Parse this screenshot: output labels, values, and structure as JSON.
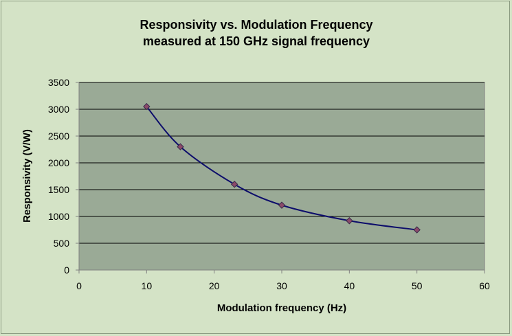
{
  "chart_data": {
    "type": "scatter",
    "title": "Responsivity vs. Modulation Frequency",
    "subtitle": "measured at 150 GHz signal frequency",
    "xlabel": "Modulation frequency (Hz)",
    "ylabel": "Responsivity (V/W)",
    "xlim": [
      0,
      60
    ],
    "ylim": [
      0,
      3500
    ],
    "xticks": [
      0,
      10,
      20,
      30,
      40,
      50,
      60
    ],
    "yticks": [
      0,
      500,
      1000,
      1500,
      2000,
      2500,
      3000,
      3500
    ],
    "grid": "horizontal",
    "legend": "none",
    "smooth_line": true,
    "series": [
      {
        "x": [
          10,
          15,
          23,
          30,
          40,
          50
        ],
        "y": [
          3050,
          2300,
          1600,
          1210,
          920,
          750
        ],
        "line_color": "#0d0d6b",
        "marker_color": "#8b4a6a",
        "marker": "diamond"
      }
    ],
    "colors": {
      "background": "#d4e3c6",
      "plot_area": "#9aaa96",
      "gridline": "#000000"
    }
  }
}
